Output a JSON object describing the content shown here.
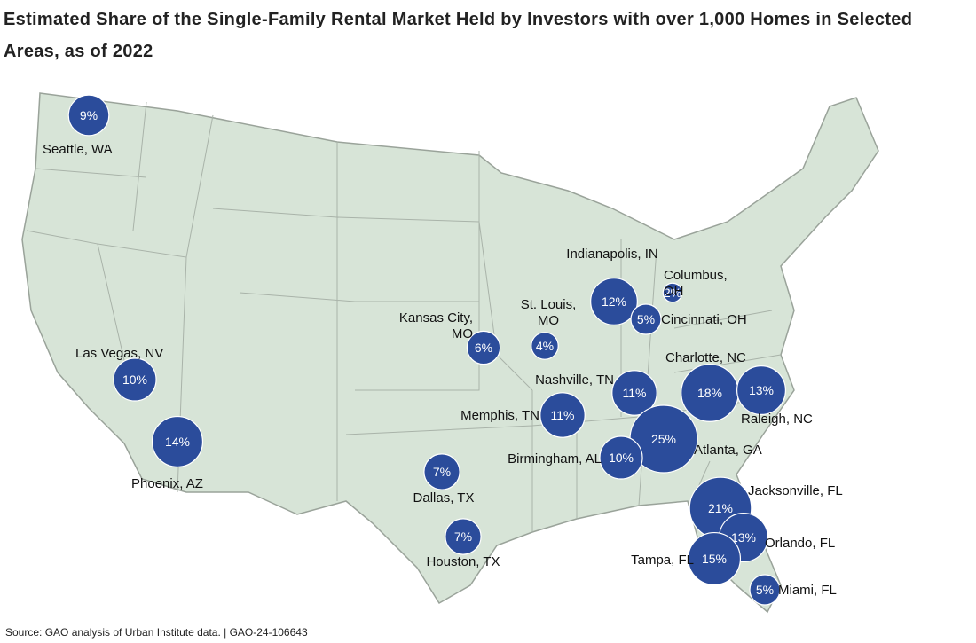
{
  "title": "Estimated Share of the Single-Family Rental Market Held by Investors with over 1,000 Homes in Selected Areas, as of 2022",
  "source": "Source: GAO analysis of Urban Institute data.  |  GAO-24-106643",
  "map": {
    "cities": [
      {
        "name": "Seattle, WA",
        "value": 9,
        "value_label": "9%"
      },
      {
        "name": "Las Vegas, NV",
        "value": 10,
        "value_label": "10%"
      },
      {
        "name": "Phoenix, AZ",
        "value": 14,
        "value_label": "14%"
      },
      {
        "name": "Kansas City, MO",
        "value": 6,
        "value_label": "6%"
      },
      {
        "name": "St. Louis, MO",
        "value": 4,
        "value_label": "4%"
      },
      {
        "name": "Indianapolis, IN",
        "value": 12,
        "value_label": "12%"
      },
      {
        "name": "Columbus, OH",
        "value": 2,
        "value_label": "2%"
      },
      {
        "name": "Cincinnati, OH",
        "value": 5,
        "value_label": "5%"
      },
      {
        "name": "Charlotte, NC",
        "value": 18,
        "value_label": "18%"
      },
      {
        "name": "Raleigh, NC",
        "value": 13,
        "value_label": "13%"
      },
      {
        "name": "Nashville, TN",
        "value": 11,
        "value_label": "11%"
      },
      {
        "name": "Memphis, TN",
        "value": 11,
        "value_label": "11%"
      },
      {
        "name": "Atlanta, GA",
        "value": 25,
        "value_label": "25%"
      },
      {
        "name": "Birmingham, AL",
        "value": 10,
        "value_label": "10%"
      },
      {
        "name": "Dallas, TX",
        "value": 7,
        "value_label": "7%"
      },
      {
        "name": "Jacksonville, FL",
        "value": 21,
        "value_label": "21%"
      },
      {
        "name": "Orlando, FL",
        "value": 13,
        "value_label": "13%"
      },
      {
        "name": "Tampa, FL",
        "value": 15,
        "value_label": "15%"
      },
      {
        "name": "Houston, TX",
        "value": 7,
        "value_label": "7%"
      },
      {
        "name": "Miami, FL",
        "value": 5,
        "value_label": "5%"
      }
    ]
  }
}
